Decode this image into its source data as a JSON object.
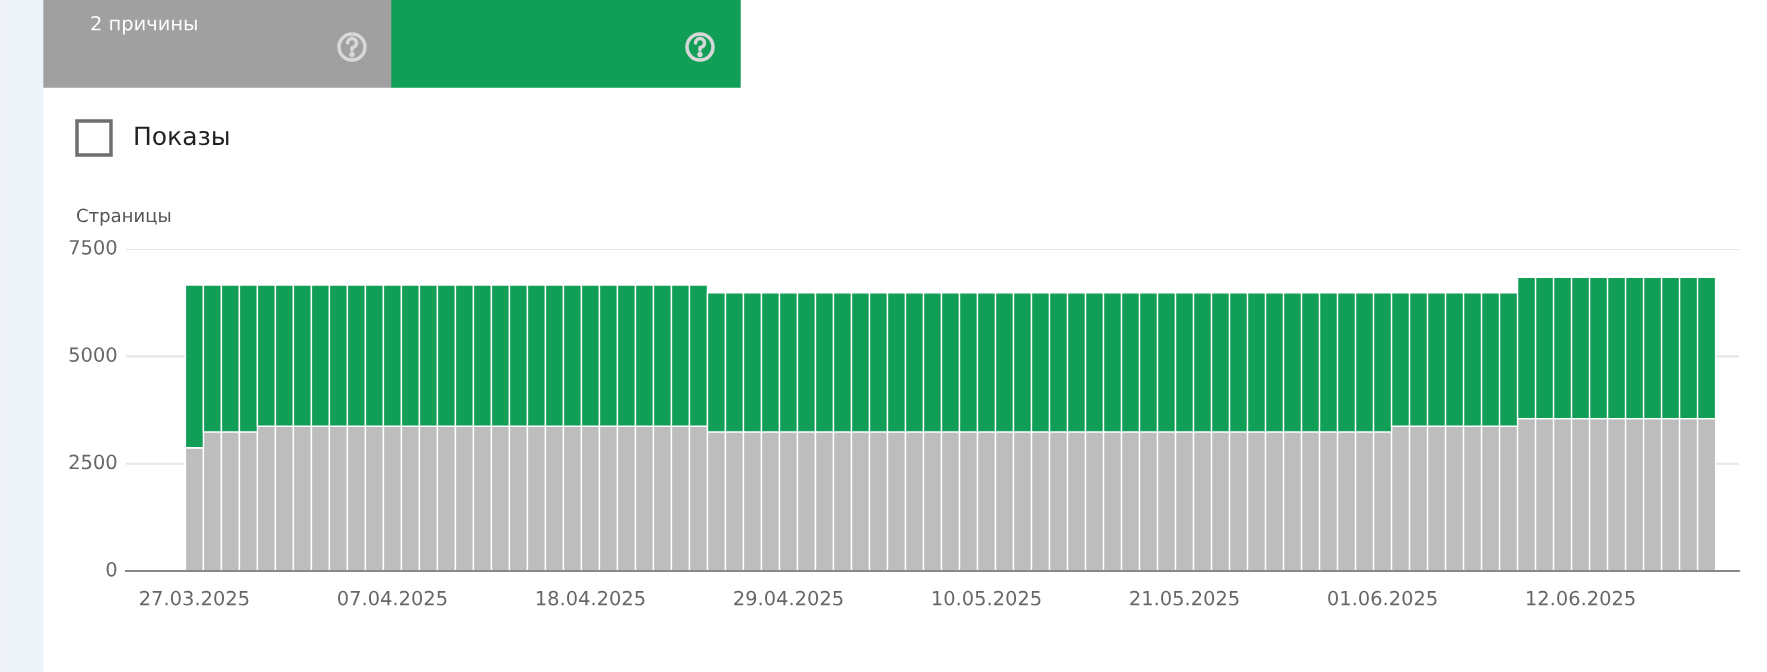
{
  "chart_data": {
    "type": "bar",
    "stacked": true,
    "ylabel": "Страницы",
    "annotations": [
      "Показы"
    ],
    "legend": "top left",
    "categories": [
      "27.03.2025",
      null,
      null,
      null,
      null,
      null,
      null,
      null,
      null,
      null,
      null,
      "07.04.2025",
      null,
      null,
      null,
      null,
      null,
      null,
      null,
      null,
      null,
      null,
      "18.04.2025",
      null,
      null,
      null,
      null,
      null,
      null,
      null,
      null,
      null,
      null,
      "29.04.2025",
      null,
      null,
      null,
      null,
      null,
      null,
      null,
      null,
      null,
      null,
      "10.05.2025",
      null,
      null,
      null,
      null,
      null,
      null,
      null,
      null,
      null,
      null,
      "21.05.2025",
      null,
      null,
      null,
      null,
      null,
      null,
      null,
      null,
      null,
      null,
      "01.06.2025",
      null,
      null,
      null,
      null,
      null,
      null,
      null,
      null,
      null,
      null,
      "12.06.2025",
      null,
      null,
      null,
      null,
      null,
      null,
      null
    ],
    "series": [
      {
        "name": "2 причины",
        "color": "#bdbdbd",
        "values": [
          2870,
          3240,
          3240,
          3240,
          3370,
          3370,
          3370,
          3370,
          3370,
          3370,
          3370,
          3370,
          3370,
          3370,
          3370,
          3370,
          3370,
          3370,
          3370,
          3370,
          3370,
          3370,
          3370,
          3370,
          3370,
          3370,
          3370,
          3370,
          3370,
          3240,
          3240,
          3240,
          3240,
          3240,
          3240,
          3240,
          3240,
          3240,
          3240,
          3240,
          3240,
          3240,
          3240,
          3240,
          3240,
          3240,
          3240,
          3240,
          3240,
          3240,
          3240,
          3240,
          3240,
          3240,
          3240,
          3240,
          3240,
          3240,
          3240,
          3240,
          3240,
          3240,
          3240,
          3240,
          3240,
          3240,
          3240,
          3370,
          3370,
          3370,
          3370,
          3370,
          3370,
          3370,
          3550,
          3550,
          3550,
          3550,
          3550,
          3550,
          3550,
          3550,
          3550,
          3550,
          3550
        ]
      },
      {
        "color": "#119e57",
        "values": [
          3790,
          3420,
          3420,
          3420,
          3290,
          3290,
          3290,
          3290,
          3290,
          3290,
          3290,
          3290,
          3290,
          3290,
          3290,
          3290,
          3290,
          3290,
          3290,
          3290,
          3290,
          3290,
          3290,
          3290,
          3290,
          3290,
          3290,
          3290,
          3290,
          3240,
          3240,
          3240,
          3240,
          3240,
          3240,
          3240,
          3240,
          3240,
          3240,
          3240,
          3240,
          3240,
          3240,
          3240,
          3240,
          3240,
          3240,
          3240,
          3240,
          3240,
          3240,
          3240,
          3240,
          3240,
          3240,
          3240,
          3240,
          3240,
          3240,
          3240,
          3240,
          3240,
          3240,
          3240,
          3240,
          3240,
          3240,
          3110,
          3110,
          3110,
          3110,
          3110,
          3110,
          3110,
          3290,
          3290,
          3290,
          3290,
          3290,
          3290,
          3290,
          3290,
          3290,
          3290,
          3290
        ]
      }
    ],
    "ylim": [
      0,
      7500
    ],
    "yticks": [
      0,
      2500,
      5000,
      7500
    ],
    "grid": "y"
  }
}
